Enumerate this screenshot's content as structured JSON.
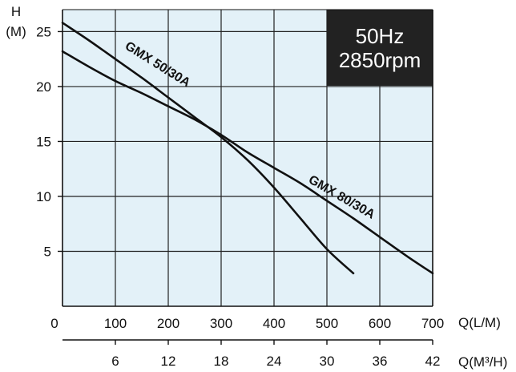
{
  "chart_data": {
    "type": "line",
    "y_axis": {
      "label_top": "H",
      "label_unit": "(M)",
      "min": 0,
      "max": 27,
      "ticks": [
        5,
        10,
        15,
        20,
        25
      ]
    },
    "x_axis": {
      "label": "Q(L/M)",
      "min": 0,
      "max": 700,
      "ticks": [
        0,
        100,
        200,
        300,
        400,
        500,
        600,
        700
      ]
    },
    "x2_axis": {
      "label": "Q(M³/H)",
      "min": 0,
      "max": 42,
      "ticks": [
        6,
        12,
        18,
        24,
        30,
        36,
        42
      ]
    },
    "grid": true,
    "info_box": {
      "line1": "50Hz",
      "line2": "2850rpm",
      "background": "#222222",
      "text_color": "#ffffff"
    },
    "plot_background": "#e3f1f8",
    "series": [
      {
        "name": "GMX 50/30A",
        "color": "#111111",
        "points": [
          [
            0,
            25.8
          ],
          [
            50,
            24.2
          ],
          [
            100,
            22.5
          ],
          [
            150,
            20.8
          ],
          [
            200,
            19.0
          ],
          [
            250,
            17.2
          ],
          [
            300,
            15.4
          ],
          [
            350,
            13.3
          ],
          [
            400,
            10.8
          ],
          [
            450,
            8.0
          ],
          [
            500,
            5.2
          ],
          [
            550,
            3.0
          ]
        ]
      },
      {
        "name": "GMX 80/30A",
        "color": "#111111",
        "points": [
          [
            0,
            23.2
          ],
          [
            50,
            21.8
          ],
          [
            100,
            20.5
          ],
          [
            150,
            19.4
          ],
          [
            200,
            18.2
          ],
          [
            250,
            17.0
          ],
          [
            300,
            15.6
          ],
          [
            350,
            14.0
          ],
          [
            400,
            12.6
          ],
          [
            450,
            11.2
          ],
          [
            500,
            9.6
          ],
          [
            550,
            8.0
          ],
          [
            600,
            6.3
          ],
          [
            650,
            4.6
          ],
          [
            700,
            3.0
          ]
        ]
      }
    ]
  }
}
